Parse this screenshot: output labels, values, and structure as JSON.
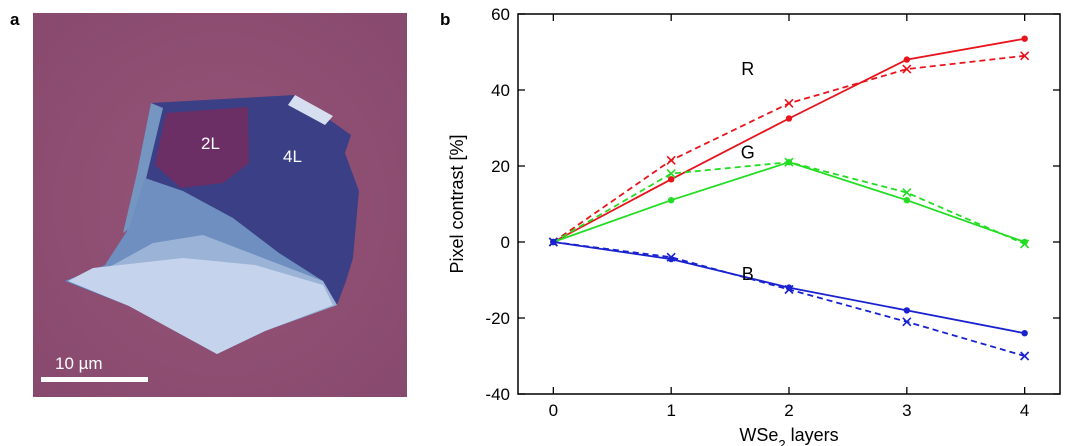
{
  "panel_a": {
    "label": "a",
    "flake_labels": [
      "2L",
      "4L"
    ],
    "scalebar_text": "10 µm"
  },
  "panel_b": {
    "label": "b"
  },
  "colors": {
    "R": "#e8131b",
    "G": "#22dd22",
    "B": "#1a22d0"
  },
  "chart_data": {
    "type": "line",
    "title": "",
    "xlabel": "WSe",
    "xlabel_sub": "2",
    "xlabel_suffix": " layers",
    "ylabel": "Pixel contrast [%]",
    "xlim": [
      -0.3,
      4.3
    ],
    "ylim": [
      -40,
      60
    ],
    "xticks": [
      0,
      1,
      2,
      3,
      4
    ],
    "yticks": [
      -40,
      -20,
      0,
      20,
      40,
      60
    ],
    "x": [
      0,
      1,
      2,
      3,
      4
    ],
    "series": [
      {
        "name": "R",
        "style": "solid",
        "marker": "dot",
        "values": [
          0,
          16.5,
          32.5,
          48,
          53.5
        ]
      },
      {
        "name": "R",
        "style": "dashed",
        "marker": "cross",
        "values": [
          0,
          21.5,
          36.5,
          45.5,
          49
        ]
      },
      {
        "name": "G",
        "style": "solid",
        "marker": "dot",
        "values": [
          0,
          11,
          21,
          11,
          0
        ]
      },
      {
        "name": "G",
        "style": "dashed",
        "marker": "cross",
        "values": [
          0,
          18,
          21,
          13,
          -0.5
        ]
      },
      {
        "name": "B",
        "style": "solid",
        "marker": "dot",
        "values": [
          0,
          -4.5,
          -12,
          -18,
          -24
        ]
      },
      {
        "name": "B",
        "style": "dashed",
        "marker": "cross",
        "values": [
          0,
          -4,
          -12.5,
          -21,
          -30
        ]
      }
    ],
    "annotations": [
      {
        "text": "R",
        "x": 1.65,
        "y": 44
      },
      {
        "text": "G",
        "x": 1.65,
        "y": 22
      },
      {
        "text": "B",
        "x": 1.65,
        "y": -10
      }
    ]
  }
}
